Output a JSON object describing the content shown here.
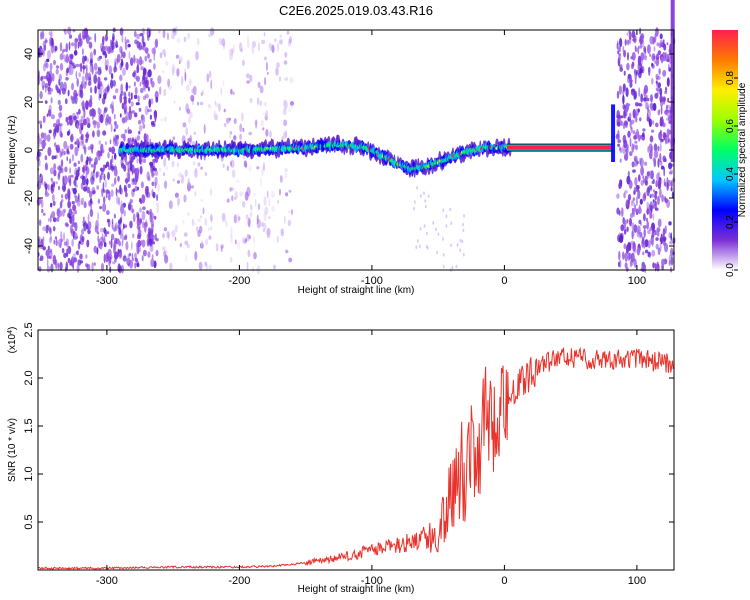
{
  "title": "C2E6.2025.019.03.43.R16",
  "colors": {
    "background": "#ffffff",
    "snr_line": "#e8322b",
    "axis": "#000000",
    "noise": "#7b2fd6",
    "trace_core": "#e53935"
  },
  "chart_data": [
    {
      "type": "heatmap",
      "xlabel": "Height of straight line (km)",
      "ylabel": "Frequency (Hz)",
      "xlim": [
        -352,
        128
      ],
      "ylim": [
        -50,
        50
      ],
      "xticks": [
        -300,
        -200,
        -100,
        0,
        100
      ],
      "yticks": [
        -40,
        -20,
        0,
        20,
        40
      ],
      "colorbar": {
        "label": "Normalized spectral amplitude",
        "range": [
          0.0,
          1.0
        ],
        "ticks": [
          0.0,
          0.2,
          0.4,
          0.6,
          0.8
        ],
        "tick_labels": [
          "0.0",
          "0.2",
          "0.4",
          "0.6",
          "0.8"
        ],
        "colormap": [
          "#ffffff",
          "#7b2fd6",
          "#0000ff",
          "#00c8ff",
          "#00ff66",
          "#9cff00",
          "#ffee00",
          "#ff7a00",
          "#ff1e50"
        ]
      },
      "ridge": {
        "x": [
          -300,
          -260,
          -200,
          -170,
          -150,
          -130,
          -120,
          -105,
          -90,
          -80,
          -70,
          -60,
          -45,
          -30,
          -15,
          0,
          80
        ],
        "y": [
          0,
          0,
          0,
          0.5,
          1,
          2,
          2,
          1,
          -3,
          -6,
          -8,
          -7,
          -4,
          -1,
          1,
          1,
          1
        ]
      },
      "noise_regions": [
        {
          "x": [
            -352,
            -262
          ],
          "level": "dense"
        },
        {
          "x": [
            -262,
            -160
          ],
          "level": "sparse"
        },
        {
          "x": [
            85,
            128
          ],
          "level": "dense"
        }
      ]
    },
    {
      "type": "line",
      "xlabel": "Height of straight line (km)",
      "ylabel": "SNR (10 * v/v)",
      "multiplier": "(x10^4)",
      "xlim": [
        -352,
        128
      ],
      "ylim": [
        0,
        2.5
      ],
      "xticks": [
        -300,
        -200,
        -100,
        0,
        100
      ],
      "yticks": [
        0.5,
        1.0,
        1.5,
        2.0,
        2.5
      ],
      "ytick_labels": [
        "0.5",
        "1.0",
        "1.5",
        "2.0",
        "2.5"
      ],
      "series": [
        {
          "x": [
            -350,
            -300,
            -250,
            -200,
            -175,
            -160,
            -140,
            -120,
            -100,
            -80,
            -60,
            -50,
            -45,
            -40,
            -35,
            -30,
            -25,
            -20,
            -15,
            -10,
            -5,
            0,
            10,
            20,
            30,
            40,
            50,
            60,
            80,
            100,
            128
          ],
          "values": [
            0.01,
            0.01,
            0.02,
            0.02,
            0.03,
            0.05,
            0.08,
            0.12,
            0.18,
            0.22,
            0.3,
            0.35,
            0.6,
            0.9,
            1.1,
            1.0,
            1.4,
            1.2,
            1.6,
            1.5,
            1.7,
            1.8,
            1.9,
            2.05,
            2.15,
            2.2,
            2.22,
            2.2,
            2.2,
            2.2,
            2.15
          ]
        }
      ]
    }
  ]
}
